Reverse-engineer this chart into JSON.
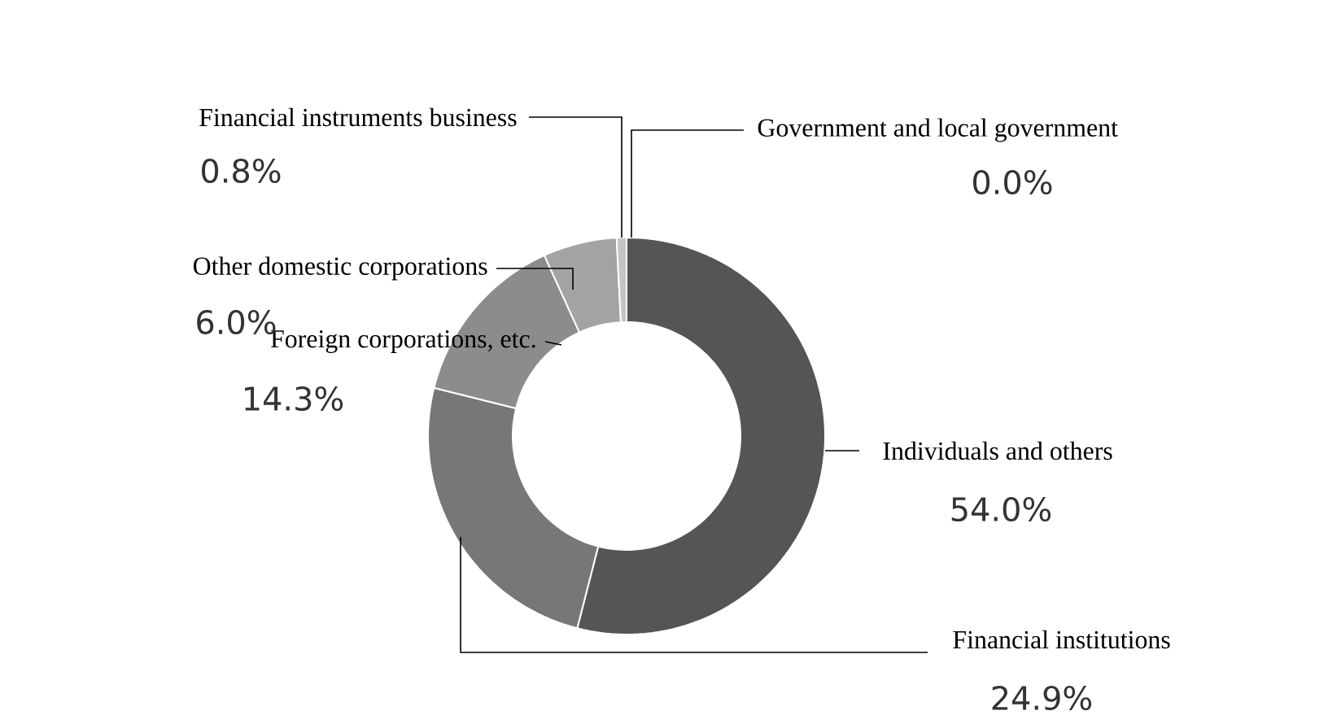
{
  "chart_data": {
    "type": "donut",
    "categories": [
      "Individuals and others",
      "Financial institutions",
      "Foreign corporations, etc.",
      "Other domestic corporations",
      "Financial instruments business",
      "Government and local government"
    ],
    "values": [
      54.0,
      24.9,
      14.3,
      6.0,
      0.8,
      0.0
    ],
    "value_labels": [
      "54.0%",
      "24.9%",
      "14.3%",
      "6.0%",
      "0.8%",
      "0.0%"
    ],
    "colors": [
      "#555555",
      "#777777",
      "#8c8c8c",
      "#a3a3a3",
      "#c4c4c4",
      "#dddddd"
    ]
  }
}
